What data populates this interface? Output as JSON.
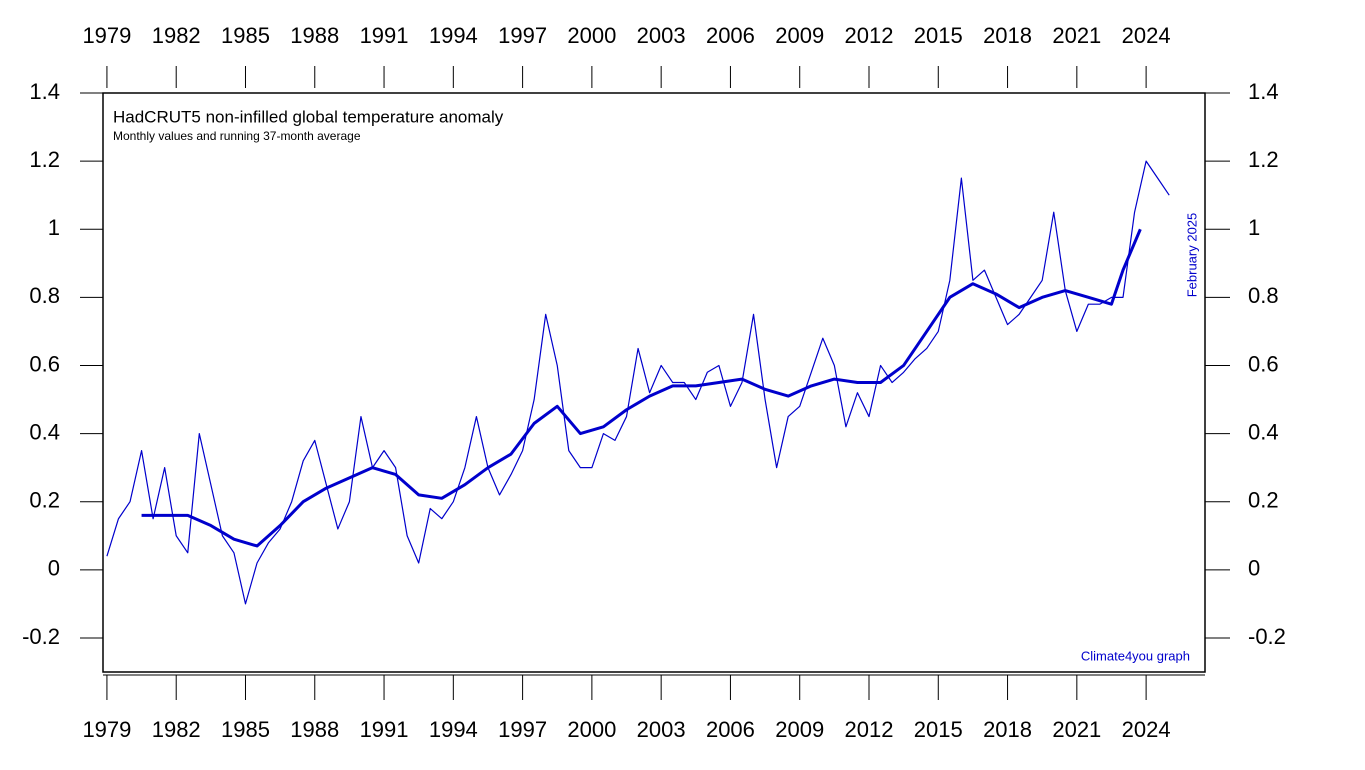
{
  "chart_data": {
    "type": "line",
    "title": "HadCRUT5 non-infilled global temperature anomaly",
    "subtitle": "Monthly values and running 37-month average",
    "annotations": [
      "February 2025",
      "Climate4you graph"
    ],
    "xlim": [
      1978.83,
      2026.55
    ],
    "ylim": [
      -0.3,
      1.4
    ],
    "xticks": [
      1979,
      1982,
      1985,
      1988,
      1991,
      1994,
      1997,
      2000,
      2003,
      2006,
      2009,
      2012,
      2015,
      2018,
      2021,
      2024
    ],
    "yticks": [
      -0.2,
      0,
      0.2,
      0.4,
      0.6,
      0.8,
      1,
      1.2,
      1.4
    ],
    "series": [
      {
        "color": "#0000cc",
        "width": 1.2,
        "x": [
          1979.0,
          1979.5,
          1980.0,
          1980.5,
          1981.0,
          1981.5,
          1982.0,
          1982.5,
          1983.0,
          1983.5,
          1984.0,
          1984.5,
          1985.0,
          1985.5,
          1986.0,
          1986.5,
          1987.0,
          1987.5,
          1988.0,
          1988.5,
          1989.0,
          1989.5,
          1990.0,
          1990.5,
          1991.0,
          1991.5,
          1992.0,
          1992.5,
          1993.0,
          1993.5,
          1994.0,
          1994.5,
          1995.0,
          1995.5,
          1996.0,
          1996.5,
          1997.0,
          1997.5,
          1998.0,
          1998.5,
          1999.0,
          1999.5,
          2000.0,
          2000.5,
          2001.0,
          2001.5,
          2002.0,
          2002.5,
          2003.0,
          2003.5,
          2004.0,
          2004.5,
          2005.0,
          2005.5,
          2006.0,
          2006.5,
          2007.0,
          2007.5,
          2008.0,
          2008.5,
          2009.0,
          2009.5,
          2010.0,
          2010.5,
          2011.0,
          2011.5,
          2012.0,
          2012.5,
          2013.0,
          2013.5,
          2014.0,
          2014.5,
          2015.0,
          2015.5,
          2016.0,
          2016.5,
          2017.0,
          2017.5,
          2018.0,
          2018.5,
          2019.0,
          2019.5,
          2020.0,
          2020.5,
          2021.0,
          2021.5,
          2022.0,
          2022.5,
          2023.0,
          2023.5,
          2024.0,
          2024.5,
          2025.0
        ],
        "values": [
          0.04,
          0.15,
          0.2,
          0.35,
          0.15,
          0.3,
          0.1,
          0.05,
          0.4,
          0.25,
          0.1,
          0.05,
          -0.1,
          0.02,
          0.08,
          0.12,
          0.2,
          0.32,
          0.38,
          0.25,
          0.12,
          0.2,
          0.45,
          0.3,
          0.35,
          0.3,
          0.1,
          0.02,
          0.18,
          0.15,
          0.2,
          0.3,
          0.45,
          0.3,
          0.22,
          0.28,
          0.35,
          0.5,
          0.75,
          0.6,
          0.35,
          0.3,
          0.3,
          0.4,
          0.38,
          0.45,
          0.65,
          0.52,
          0.6,
          0.55,
          0.55,
          0.5,
          0.58,
          0.6,
          0.48,
          0.55,
          0.75,
          0.5,
          0.3,
          0.45,
          0.48,
          0.58,
          0.68,
          0.6,
          0.42,
          0.52,
          0.45,
          0.6,
          0.55,
          0.58,
          0.62,
          0.65,
          0.7,
          0.85,
          1.15,
          0.85,
          0.88,
          0.8,
          0.72,
          0.75,
          0.8,
          0.85,
          1.05,
          0.82,
          0.7,
          0.78,
          0.78,
          0.8,
          0.8,
          1.05,
          1.2,
          1.15,
          1.1
        ]
      },
      {
        "color": "#0000cc",
        "width": 3,
        "x": [
          1980.5,
          1981.5,
          1982.5,
          1983.5,
          1984.5,
          1985.5,
          1986.5,
          1987.5,
          1988.5,
          1989.5,
          1990.5,
          1991.5,
          1992.5,
          1993.5,
          1994.5,
          1995.5,
          1996.5,
          1997.5,
          1998.5,
          1999.5,
          2000.5,
          2001.5,
          2002.5,
          2003.5,
          2004.5,
          2005.5,
          2006.5,
          2007.5,
          2008.5,
          2009.5,
          2010.5,
          2011.5,
          2012.5,
          2013.5,
          2014.5,
          2015.5,
          2016.5,
          2017.5,
          2018.5,
          2019.5,
          2020.5,
          2021.5,
          2022.5,
          2023.0,
          2023.75
        ],
        "values": [
          0.16,
          0.16,
          0.16,
          0.13,
          0.09,
          0.07,
          0.13,
          0.2,
          0.24,
          0.27,
          0.3,
          0.28,
          0.22,
          0.21,
          0.25,
          0.3,
          0.34,
          0.43,
          0.48,
          0.4,
          0.42,
          0.47,
          0.51,
          0.54,
          0.54,
          0.55,
          0.56,
          0.53,
          0.51,
          0.54,
          0.56,
          0.55,
          0.55,
          0.6,
          0.7,
          0.8,
          0.84,
          0.81,
          0.77,
          0.8,
          0.82,
          0.8,
          0.78,
          0.88,
          1.0
        ]
      }
    ]
  }
}
